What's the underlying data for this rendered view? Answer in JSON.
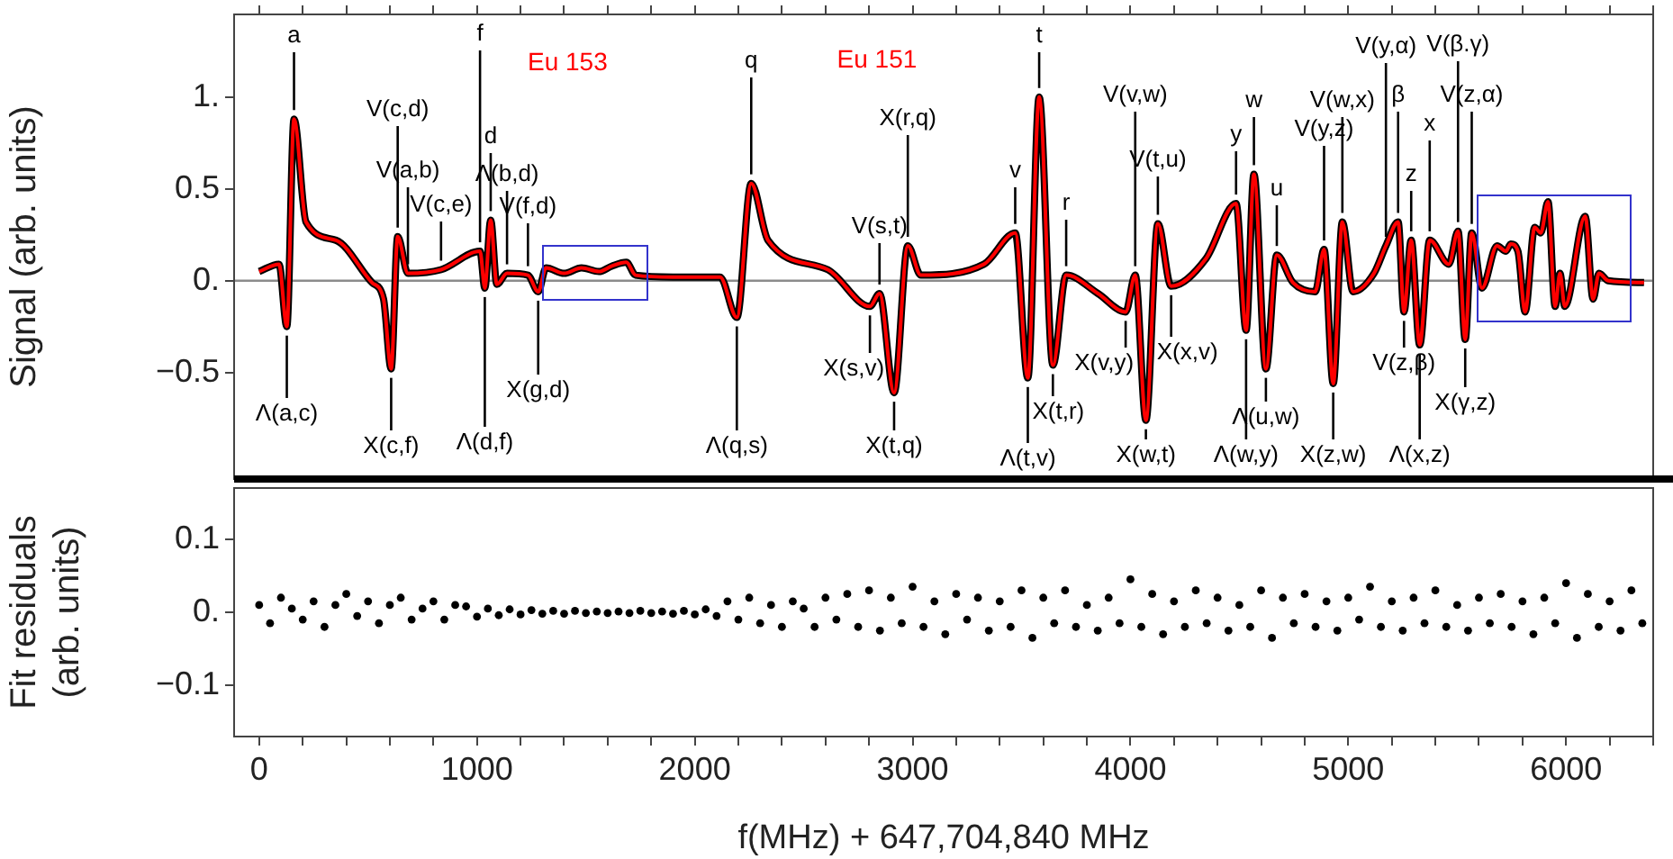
{
  "chart_data": [
    {
      "type": "line",
      "ylabel": "Signal (arb. units)",
      "tick_labels": "y",
      "marker": "none",
      "x": [
        0,
        91,
        127,
        160,
        215,
        353,
        518,
        571,
        606,
        636,
        683,
        835,
        1014,
        1036,
        1063,
        1091,
        1138,
        1234,
        1281,
        1317,
        1400,
        1480,
        1560,
        1620,
        1686,
        1728,
        1900,
        2116,
        2193,
        2259,
        2336,
        2611,
        2804,
        2848,
        2915,
        2978,
        3038,
        3328,
        3471,
        3529,
        3581,
        3644,
        3705,
        3851,
        3978,
        4022,
        4071,
        4126,
        4187,
        4347,
        4485,
        4531,
        4567,
        4622,
        4672,
        4746,
        4848,
        4889,
        4931,
        4973,
        5022,
        5118,
        5173,
        5229,
        5256,
        5289,
        5328,
        5374,
        5462,
        5504,
        5537,
        5567,
        5614,
        5683,
        5724,
        5746,
        5779,
        5812,
        5856,
        5884,
        5917,
        5950,
        5972,
        5994,
        6088,
        6124,
        6151,
        6193,
        6358
      ],
      "series": [
        {
          "color": "#000000",
          "values": [
            0.05,
            0.09,
            -0.25,
            0.88,
            0.32,
            0.22,
            -0.01,
            -0.1,
            -0.48,
            0.24,
            0.04,
            0.06,
            0.16,
            -0.04,
            0.33,
            -0.02,
            0.04,
            0.03,
            -0.06,
            0.07,
            0.04,
            0.07,
            0.05,
            0.08,
            0.1,
            0.03,
            0.02,
            0.02,
            -0.2,
            0.53,
            0.22,
            0.06,
            -0.14,
            -0.07,
            -0.61,
            0.19,
            0.03,
            0.09,
            0.26,
            -0.53,
            1.0,
            -0.46,
            0.03,
            -0.07,
            -0.17,
            0.03,
            -0.76,
            0.31,
            -0.03,
            0.12,
            0.42,
            -0.27,
            0.58,
            -0.48,
            0.14,
            -0.01,
            -0.06,
            0.17,
            -0.56,
            0.32,
            -0.06,
            0.04,
            0.19,
            0.32,
            -0.17,
            0.22,
            -0.35,
            0.22,
            0.09,
            0.27,
            -0.32,
            0.26,
            -0.04,
            0.19,
            0.16,
            0.2,
            0.16,
            -0.17,
            0.29,
            0.26,
            0.43,
            -0.14,
            0.04,
            -0.14,
            0.35,
            -0.1,
            0.04,
            0.0,
            -0.01
          ]
        },
        {
          "color": "#ff0000",
          "values": [
            0.05,
            0.09,
            -0.25,
            0.88,
            0.32,
            0.22,
            -0.01,
            -0.1,
            -0.48,
            0.24,
            0.04,
            0.06,
            0.16,
            -0.04,
            0.33,
            -0.02,
            0.04,
            0.03,
            -0.06,
            0.07,
            0.04,
            0.07,
            0.05,
            0.08,
            0.1,
            0.03,
            0.02,
            0.02,
            -0.2,
            0.53,
            0.22,
            0.06,
            -0.14,
            -0.07,
            -0.61,
            0.19,
            0.03,
            0.09,
            0.26,
            -0.53,
            1.0,
            -0.46,
            0.03,
            -0.07,
            -0.17,
            0.03,
            -0.76,
            0.31,
            -0.03,
            0.12,
            0.42,
            -0.27,
            0.58,
            -0.48,
            0.14,
            -0.01,
            -0.06,
            0.17,
            -0.56,
            0.32,
            -0.06,
            0.04,
            0.19,
            0.32,
            -0.17,
            0.22,
            -0.35,
            0.22,
            0.09,
            0.27,
            -0.32,
            0.26,
            -0.04,
            0.19,
            0.16,
            0.2,
            0.16,
            -0.17,
            0.29,
            0.26,
            0.43,
            -0.14,
            0.04,
            -0.14,
            0.35,
            -0.1,
            0.04,
            0.0,
            -0.01
          ]
        }
      ],
      "xlim": [
        -115,
        6400
      ],
      "ylim": [
        -1.08,
        1.45
      ],
      "xticks": [
        0,
        {
          "value": 200,
          "label": null
        },
        {
          "value": 400,
          "label": null
        },
        {
          "value": 600,
          "label": null
        },
        {
          "value": 800,
          "label": null
        },
        1000,
        {
          "value": 1200,
          "label": null
        },
        {
          "value": 1400,
          "label": null
        },
        {
          "value": 1600,
          "label": null
        },
        {
          "value": 1800,
          "label": null
        },
        2000,
        {
          "value": 2200,
          "label": null
        },
        {
          "value": 2400,
          "label": null
        },
        {
          "value": 2600,
          "label": null
        },
        {
          "value": 2800,
          "label": null
        },
        3000,
        {
          "value": 3200,
          "label": null
        },
        {
          "value": 3400,
          "label": null
        },
        {
          "value": 3600,
          "label": null
        },
        {
          "value": 3800,
          "label": null
        },
        4000,
        {
          "value": 4200,
          "label": null
        },
        {
          "value": 4400,
          "label": null
        },
        {
          "value": 4600,
          "label": null
        },
        {
          "value": 4800,
          "label": null
        },
        5000,
        {
          "value": 5200,
          "label": null
        },
        {
          "value": 5400,
          "label": null
        },
        {
          "value": 5600,
          "label": null
        },
        {
          "value": 5800,
          "label": null
        },
        6000,
        {
          "value": 6200,
          "label": null
        },
        {
          "value": 6400,
          "label": null
        }
      ],
      "yticks": [
        {
          "value": -0.5,
          "label": "−0.5"
        },
        {
          "value": 0,
          "label": "0."
        },
        0.5,
        {
          "value": 1,
          "label": "1."
        }
      ],
      "ref_lines": [
        {
          "axis": "y",
          "value": 0,
          "color": "#8c8c8c"
        }
      ],
      "annotations": [
        "Eu 153",
        "Eu 151",
        {
          "text": "a",
          "x": 160,
          "y": 0.88
        },
        {
          "text": "V(c,d)",
          "x": 636,
          "y": 0.24
        },
        {
          "text": "V(a,b)",
          "x": 683,
          "y": 0.04
        },
        {
          "text": "V(c,e)",
          "x": 835,
          "y": 0.06
        },
        {
          "text": "f",
          "x": 1014,
          "y": 0.16
        },
        {
          "text": "d",
          "x": 1063,
          "y": 0.33
        },
        {
          "text": "Λ(b,d)",
          "x": 1138,
          "y": 0.04
        },
        {
          "text": "V(f,d)",
          "x": 1234,
          "y": 0.03
        },
        {
          "text": "q",
          "x": 2259,
          "y": 0.53
        },
        {
          "text": "V(s,t)",
          "x": 2848,
          "y": -0.07
        },
        {
          "text": "X(r,q)",
          "x": 2978,
          "y": 0.19
        },
        {
          "text": "v",
          "x": 3471,
          "y": 0.26
        },
        {
          "text": "t",
          "x": 3581,
          "y": 1.0
        },
        {
          "text": "r",
          "x": 3705,
          "y": 0.03
        },
        {
          "text": "V(v,w)",
          "x": 4022,
          "y": 0.03
        },
        {
          "text": "V(t,u)",
          "x": 4126,
          "y": 0.31
        },
        {
          "text": "y",
          "x": 4485,
          "y": 0.42
        },
        {
          "text": "w",
          "x": 4567,
          "y": 0.58
        },
        {
          "text": "u",
          "x": 4672,
          "y": 0.14
        },
        {
          "text": "V(y,z)",
          "x": 4889,
          "y": 0.17
        },
        {
          "text": "V(w,x)",
          "x": 4973,
          "y": 0.32
        },
        {
          "text": "V(y,α)",
          "x": 5173,
          "y": 0.19
        },
        {
          "text": "β",
          "x": 5229,
          "y": 0.32
        },
        {
          "text": "z",
          "x": 5289,
          "y": 0.22
        },
        {
          "text": "x",
          "x": 5374,
          "y": 0.22
        },
        {
          "text": "V(β.γ)",
          "x": 5504,
          "y": 0.27
        },
        {
          "text": "V(z,α)",
          "x": 5567,
          "y": 0.26
        },
        {
          "text": "Λ(a,c)",
          "x": 127,
          "y": -0.25
        },
        {
          "text": "X(c,f)",
          "x": 606,
          "y": -0.48
        },
        {
          "text": "Λ(d,f)",
          "x": 1036,
          "y": -0.04
        },
        {
          "text": "X(g,d)",
          "x": 1281,
          "y": -0.06
        },
        {
          "text": "Λ(q,s)",
          "x": 2193,
          "y": -0.2
        },
        {
          "text": "X(s,v)",
          "x": 2804,
          "y": -0.14
        },
        {
          "text": "X(t,q)",
          "x": 2915,
          "y": -0.61
        },
        {
          "text": "Λ(t,v)",
          "x": 3529,
          "y": -0.53
        },
        {
          "text": "X(t,r)",
          "x": 3644,
          "y": -0.46
        },
        {
          "text": "X(v,y)",
          "x": 3978,
          "y": -0.17
        },
        {
          "text": "X(w,t)",
          "x": 4071,
          "y": -0.76
        },
        {
          "text": "X(x,v)",
          "x": 4187,
          "y": -0.03
        },
        {
          "text": "Λ(w,y)",
          "x": 4531,
          "y": -0.27
        },
        {
          "text": "Λ(u,w)",
          "x": 4622,
          "y": -0.48
        },
        {
          "text": "X(z,w)",
          "x": 4931,
          "y": -0.56
        },
        {
          "text": "V(z,β)",
          "x": 5256,
          "y": -0.17
        },
        {
          "text": "Λ(x,z)",
          "x": 5328,
          "y": -0.35
        },
        {
          "text": "X(γ,z)",
          "x": 5537,
          "y": -0.32
        }
      ]
    },
    {
      "type": "scatter",
      "xlabel": "f(MHz) + 647,704,840 MHz",
      "ylabel": "Fit residuals (arb. units)",
      "marker": "circle",
      "x": [
        0,
        50,
        100,
        150,
        200,
        250,
        300,
        350,
        400,
        450,
        500,
        550,
        600,
        650,
        700,
        750,
        800,
        850,
        900,
        950,
        1000,
        1050,
        1100,
        1150,
        1200,
        1250,
        1300,
        1350,
        1400,
        1450,
        1500,
        1550,
        1600,
        1650,
        1700,
        1750,
        1800,
        1850,
        1900,
        1950,
        2000,
        2050,
        2100,
        2150,
        2200,
        2250,
        2300,
        2350,
        2400,
        2450,
        2500,
        2550,
        2600,
        2650,
        2700,
        2750,
        2800,
        2850,
        2900,
        2950,
        3000,
        3050,
        3100,
        3150,
        3200,
        3250,
        3300,
        3350,
        3400,
        3450,
        3500,
        3550,
        3600,
        3650,
        3700,
        3750,
        3800,
        3850,
        3900,
        3950,
        4000,
        4050,
        4100,
        4150,
        4200,
        4250,
        4300,
        4350,
        4400,
        4450,
        4500,
        4550,
        4600,
        4650,
        4700,
        4750,
        4800,
        4850,
        4900,
        4950,
        5000,
        5050,
        5100,
        5150,
        5200,
        5250,
        5300,
        5350,
        5400,
        5450,
        5500,
        5550,
        5600,
        5650,
        5700,
        5750,
        5800,
        5850,
        5900,
        5950,
        6000,
        6050,
        6100,
        6150,
        6200,
        6250,
        6300,
        6350
      ],
      "series": [
        {
          "color": "#000000",
          "values": [
            0.01,
            -0.015,
            0.02,
            0.005,
            -0.01,
            0.015,
            -0.02,
            0.01,
            0.025,
            -0.005,
            0.015,
            -0.015,
            0.01,
            0.02,
            -0.01,
            0.005,
            0.015,
            -0.01,
            0.01,
            0.008,
            -0.006,
            0.005,
            -0.004,
            0.004,
            -0.003,
            0.003,
            -0.002,
            0.002,
            -0.002,
            0.002,
            -0.001,
            0.001,
            -0.001,
            0.001,
            -0.001,
            0.002,
            -0.001,
            0.001,
            -0.002,
            0.002,
            -0.003,
            0.004,
            -0.005,
            0.015,
            -0.01,
            0.02,
            -0.015,
            0.01,
            -0.02,
            0.015,
            0.005,
            -0.02,
            0.02,
            -0.01,
            0.025,
            -0.02,
            0.03,
            -0.025,
            0.02,
            -0.015,
            0.035,
            -0.02,
            0.015,
            -0.03,
            0.025,
            -0.01,
            0.02,
            -0.025,
            0.015,
            -0.02,
            0.03,
            -0.035,
            0.02,
            -0.015,
            0.03,
            -0.02,
            0.01,
            -0.025,
            0.02,
            -0.015,
            0.045,
            -0.02,
            0.025,
            -0.03,
            0.015,
            -0.02,
            0.03,
            -0.015,
            0.02,
            -0.025,
            0.01,
            -0.02,
            0.03,
            -0.035,
            0.02,
            -0.015,
            0.025,
            -0.02,
            0.015,
            -0.025,
            0.02,
            -0.01,
            0.035,
            -0.02,
            0.015,
            -0.025,
            0.02,
            -0.015,
            0.03,
            -0.02,
            0.01,
            -0.025,
            0.02,
            -0.015,
            0.025,
            -0.02,
            0.015,
            -0.03,
            0.02,
            -0.015,
            0.04,
            -0.035,
            0.025,
            -0.02,
            0.015,
            -0.025,
            0.03,
            -0.015
          ]
        }
      ],
      "xlim": [
        -115,
        6400
      ],
      "ylim": [
        -0.17,
        0.17
      ],
      "xticks": [
        0,
        {
          "value": 200,
          "label": null
        },
        {
          "value": 400,
          "label": null
        },
        {
          "value": 600,
          "label": null
        },
        {
          "value": 800,
          "label": null
        },
        1000,
        {
          "value": 1200,
          "label": null
        },
        {
          "value": 1400,
          "label": null
        },
        {
          "value": 1600,
          "label": null
        },
        {
          "value": 1800,
          "label": null
        },
        2000,
        {
          "value": 2200,
          "label": null
        },
        {
          "value": 2400,
          "label": null
        },
        {
          "value": 2600,
          "label": null
        },
        {
          "value": 2800,
          "label": null
        },
        3000,
        {
          "value": 3200,
          "label": null
        },
        {
          "value": 3400,
          "label": null
        },
        {
          "value": 3600,
          "label": null
        },
        {
          "value": 3800,
          "label": null
        },
        4000,
        {
          "value": 4200,
          "label": null
        },
        {
          "value": 4400,
          "label": null
        },
        {
          "value": 4600,
          "label": null
        },
        {
          "value": 4800,
          "label": null
        },
        5000,
        {
          "value": 5200,
          "label": null
        },
        {
          "value": 5400,
          "label": null
        },
        {
          "value": 5600,
          "label": null
        },
        {
          "value": 5800,
          "label": null
        },
        6000,
        {
          "value": 6200,
          "label": null
        },
        {
          "value": 6400,
          "label": null
        }
      ],
      "yticks": [
        {
          "value": -0.1,
          "label": "−0.1"
        },
        {
          "value": 0,
          "label": "0."
        },
        0.1
      ]
    }
  ]
}
